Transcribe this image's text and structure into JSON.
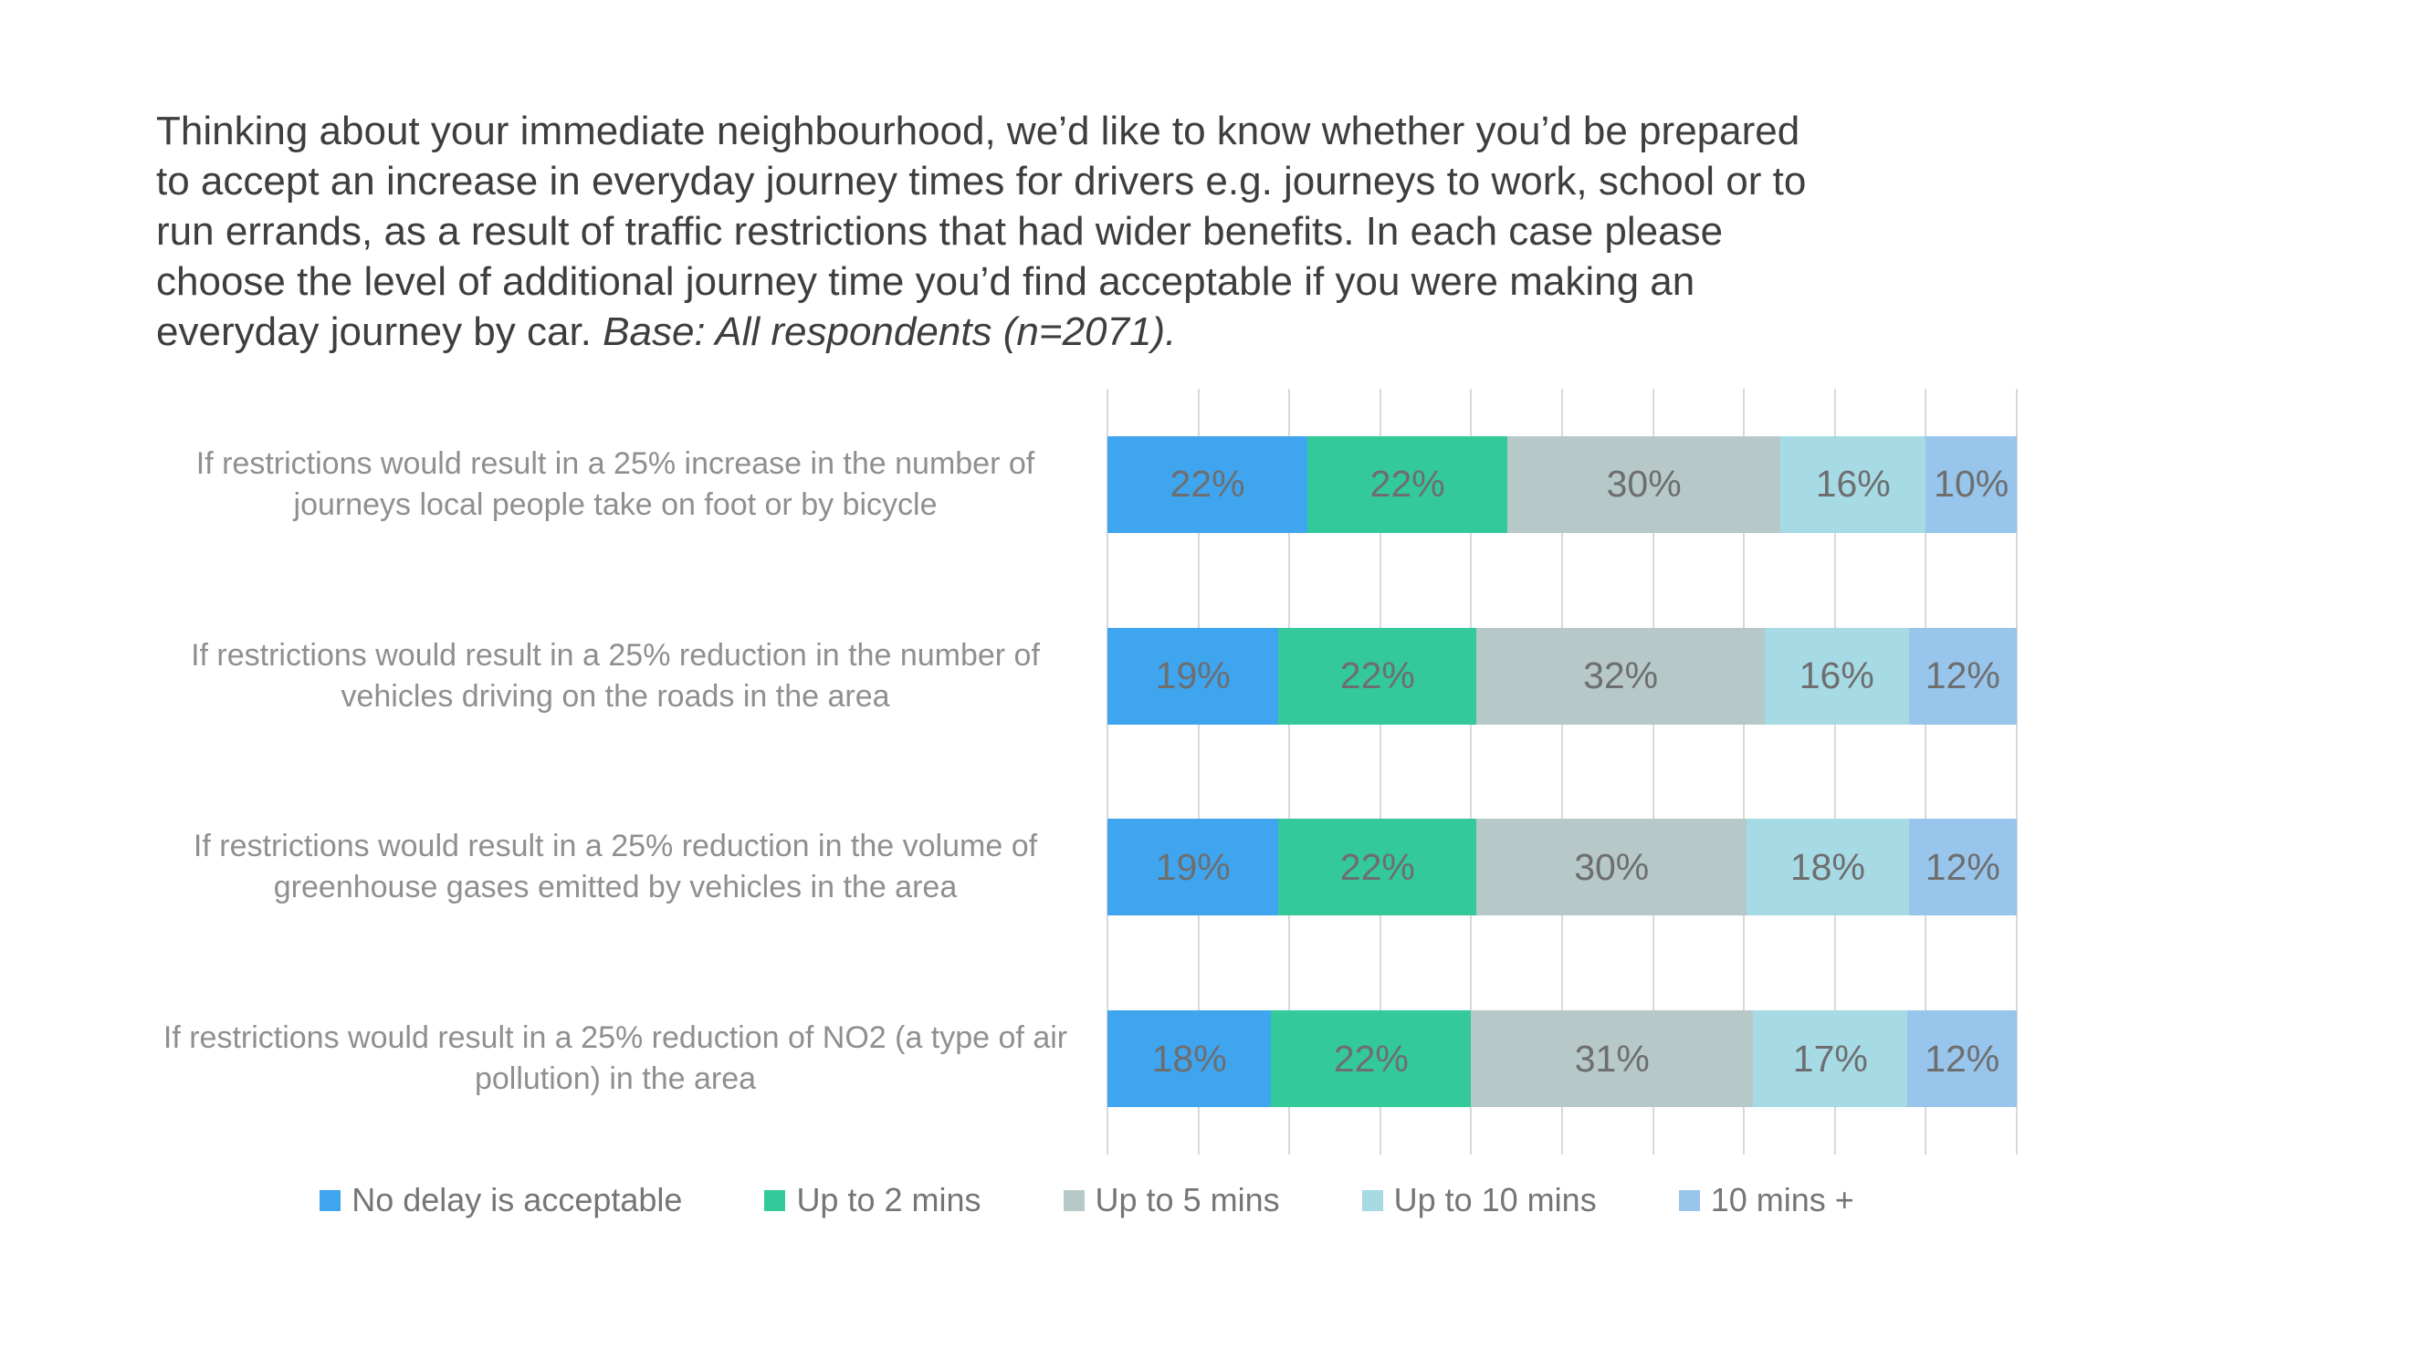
{
  "title": {
    "lines": [
      "Thinking about your immediate neighbourhood, we’d like to know whether you’d be prepared",
      "to accept an increase in everyday journey times for drivers e.g. journeys to work, school or to",
      "run errands, as a result of traffic restrictions that had wider benefits. In each case please",
      "choose the level of additional journey time you’d find acceptable if you were making an"
    ],
    "last_line_normal": "everyday journey by car. ",
    "last_line_italic": "Base: All respondents (n=2071)."
  },
  "chart_data": {
    "type": "bar",
    "orientation": "horizontal",
    "stacked": true,
    "unit": "percent",
    "title": "",
    "xlabel": "",
    "ylabel": "",
    "xlim": [
      0,
      100
    ],
    "gridline_step": 10,
    "grid": true,
    "legend_position": "bottom",
    "data_label_format": "{v}%",
    "categories": [
      "If restrictions would result in a 25% increase in the number of journeys local people take on foot or by bicycle",
      "If restrictions would result in a 25% reduction in the number of vehicles driving on the roads in the area",
      "If restrictions would result in a 25% reduction in the volume of greenhouse gases emitted by vehicles in the area",
      "If restrictions would result in a 25% reduction of NO2 (a type of air pollution) in the area"
    ],
    "series": [
      {
        "name": "No delay is acceptable",
        "color": "#3FA5EE",
        "values": [
          22,
          19,
          19,
          18
        ]
      },
      {
        "name": "Up to 2 mins",
        "color": "#33C99A",
        "values": [
          22,
          22,
          22,
          22
        ]
      },
      {
        "name": "Up to 5 mins",
        "color": "#B7C8C8",
        "values": [
          30,
          32,
          30,
          31
        ]
      },
      {
        "name": "Up to 10 mins",
        "color": "#A6DAE5",
        "values": [
          16,
          16,
          18,
          17
        ]
      },
      {
        "name": "10 mins +",
        "color": "#97C5EC",
        "values": [
          10,
          12,
          12,
          12
        ]
      }
    ],
    "style_colors": {
      "gridline": "#D9D9D9",
      "title_text": "#3E3E3E",
      "category_label_text": "#8F8F8F",
      "data_label_text": "#6E6E6E",
      "legend_text": "#757575",
      "background": "#FFFFFF"
    }
  }
}
